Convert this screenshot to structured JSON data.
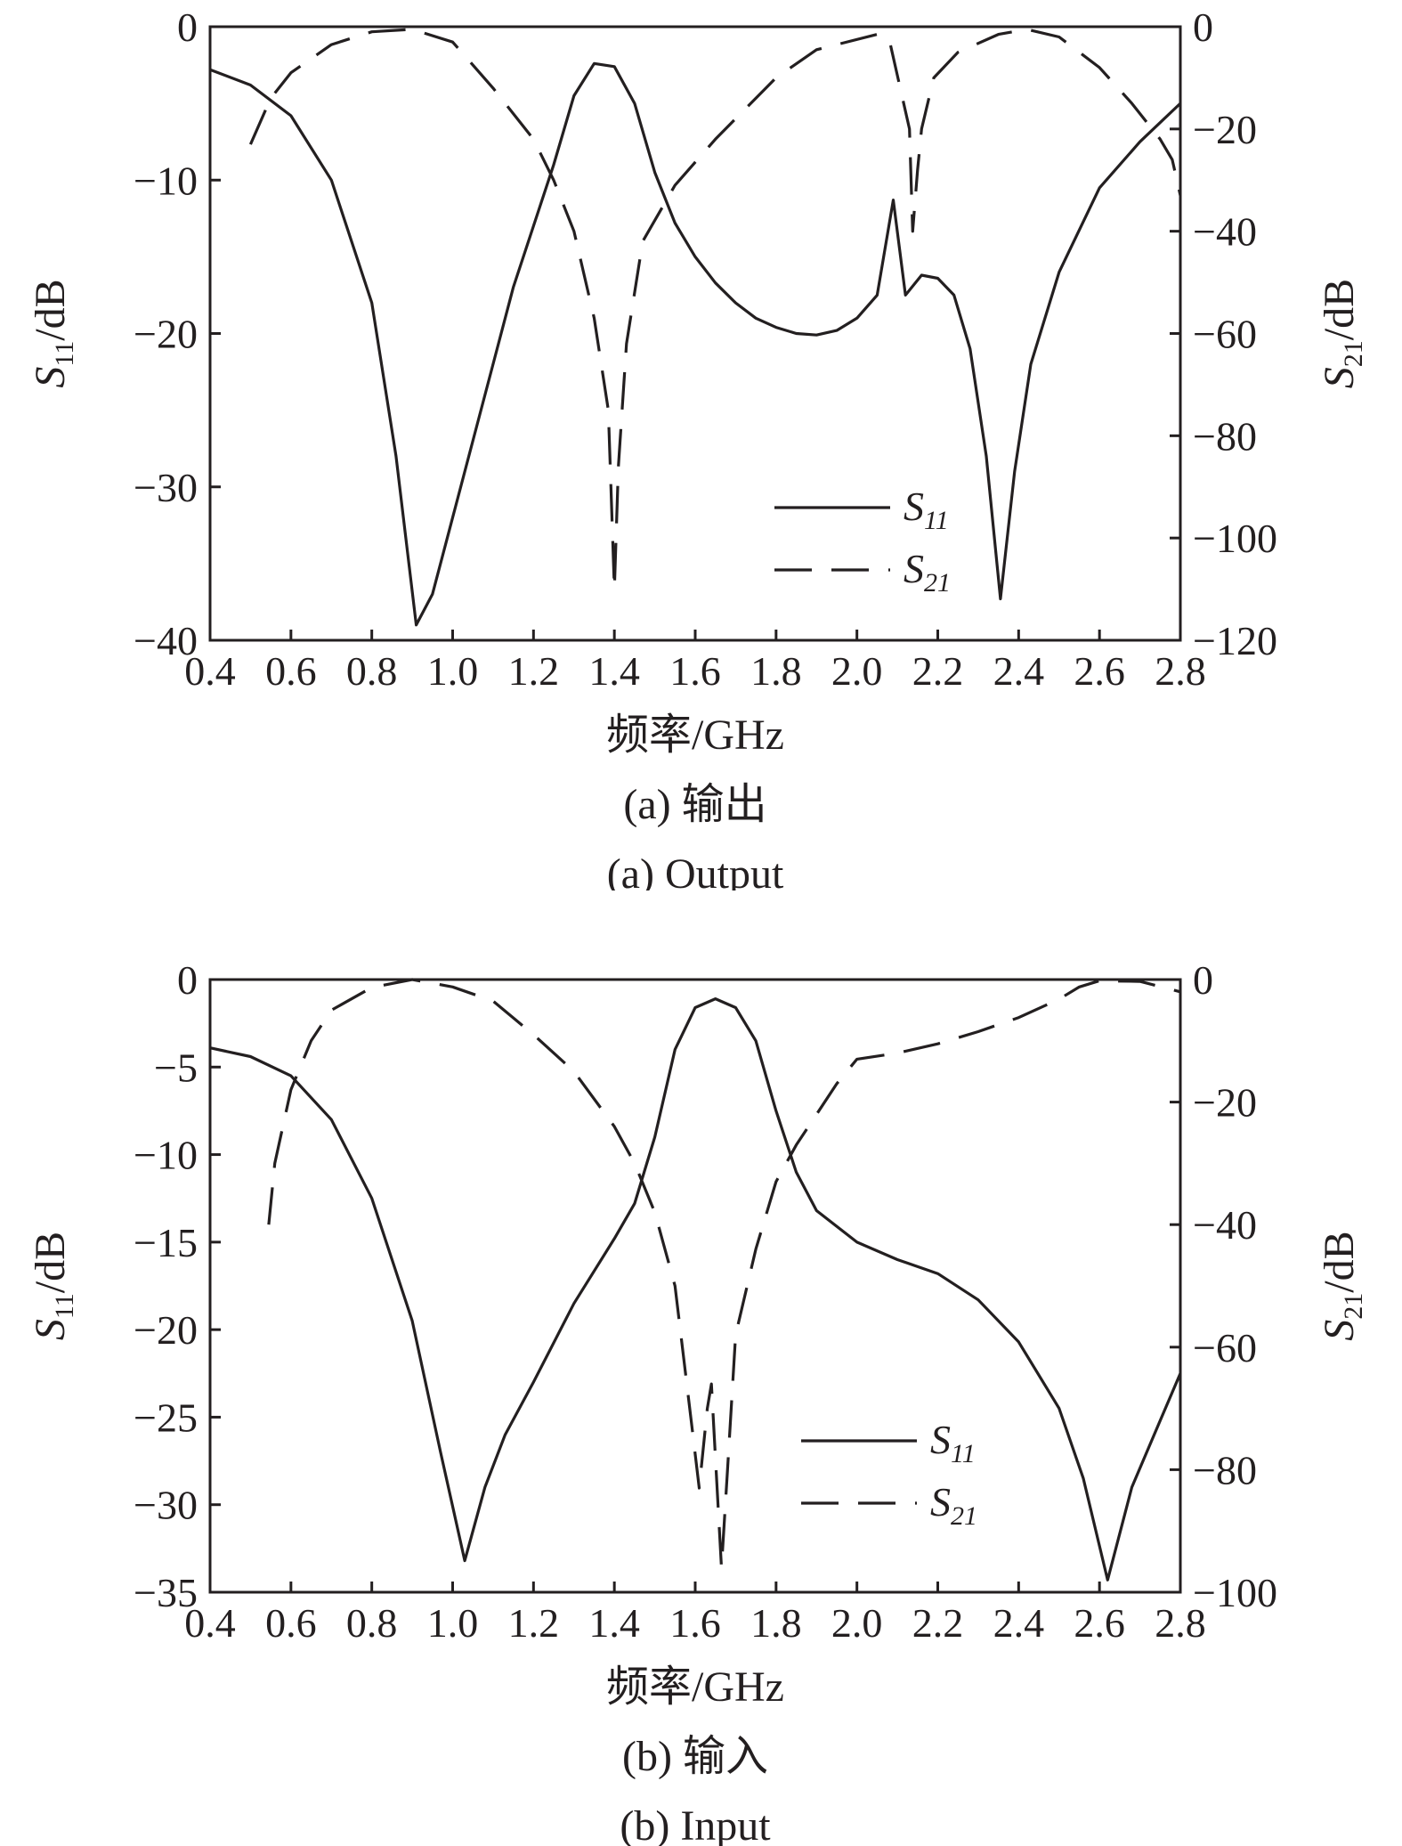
{
  "chart_data": [
    {
      "type": "line",
      "xlabel": "频率/GHz",
      "ylabel_left": "S11/dB",
      "ylabel_left_main": "S",
      "ylabel_left_sub": "11",
      "ylabel_left_rest": "/dB",
      "ylabel_right": "S21/dB",
      "ylabel_right_main": "S",
      "ylabel_right_sub": "21",
      "ylabel_right_rest": "/dB",
      "caption_cn": "(a) 输出",
      "caption_en": "(a) Output",
      "xlim": [
        0.4,
        2.8
      ],
      "ylim_left": [
        -40,
        0
      ],
      "ylim_right": [
        -120,
        0
      ],
      "x_ticks": [
        "0.4",
        "0.6",
        "0.8",
        "1.0",
        "1.2",
        "1.4",
        "1.6",
        "1.8",
        "2.0",
        "2.2",
        "2.4",
        "2.6",
        "2.8"
      ],
      "y_left_ticks": [
        "0",
        "-10",
        "-20",
        "-30",
        "-40"
      ],
      "y_right_ticks": [
        "0",
        "-20",
        "-40",
        "-60",
        "-80",
        "-100",
        "-120"
      ],
      "grid": false,
      "legend_position": "lower-right",
      "series": [
        {
          "name": "S11",
          "name_main": "S",
          "name_sub": "11",
          "axis": "left",
          "style": "solid",
          "points": [
            [
              0.4,
              -2.8
            ],
            [
              0.5,
              -3.8
            ],
            [
              0.6,
              -5.8
            ],
            [
              0.7,
              -10
            ],
            [
              0.8,
              -18
            ],
            [
              0.86,
              -28
            ],
            [
              0.91,
              -39
            ],
            [
              0.95,
              -37
            ],
            [
              1.0,
              -32
            ],
            [
              1.05,
              -27
            ],
            [
              1.1,
              -22
            ],
            [
              1.15,
              -17
            ],
            [
              1.2,
              -13
            ],
            [
              1.25,
              -9
            ],
            [
              1.3,
              -4.5
            ],
            [
              1.35,
              -2.4
            ],
            [
              1.4,
              -2.6
            ],
            [
              1.45,
              -5
            ],
            [
              1.5,
              -9.5
            ],
            [
              1.55,
              -12.8
            ],
            [
              1.6,
              -15
            ],
            [
              1.65,
              -16.7
            ],
            [
              1.7,
              -18
            ],
            [
              1.75,
              -19
            ],
            [
              1.8,
              -19.6
            ],
            [
              1.85,
              -20
            ],
            [
              1.9,
              -20.1
            ],
            [
              1.95,
              -19.8
            ],
            [
              2.0,
              -19
            ],
            [
              2.05,
              -17.5
            ],
            [
              2.09,
              -11.3
            ],
            [
              2.12,
              -17.5
            ],
            [
              2.16,
              -16.2
            ],
            [
              2.2,
              -16.4
            ],
            [
              2.24,
              -17.5
            ],
            [
              2.28,
              -21
            ],
            [
              2.32,
              -28
            ],
            [
              2.355,
              -37.3
            ],
            [
              2.39,
              -29
            ],
            [
              2.43,
              -22
            ],
            [
              2.5,
              -16
            ],
            [
              2.6,
              -10.5
            ],
            [
              2.7,
              -7.5
            ],
            [
              2.8,
              -5
            ]
          ]
        },
        {
          "name": "S21",
          "name_main": "S",
          "name_sub": "21",
          "axis": "right",
          "style": "dashed",
          "points": [
            [
              0.5,
              -23
            ],
            [
              0.55,
              -14
            ],
            [
              0.6,
              -9
            ],
            [
              0.7,
              -3.5
            ],
            [
              0.8,
              -1
            ],
            [
              0.9,
              -0.5
            ],
            [
              1.0,
              -3
            ],
            [
              1.1,
              -12
            ],
            [
              1.2,
              -22
            ],
            [
              1.25,
              -30
            ],
            [
              1.3,
              -40
            ],
            [
              1.35,
              -57
            ],
            [
              1.385,
              -75
            ],
            [
              1.4,
              -110
            ],
            [
              1.41,
              -86
            ],
            [
              1.43,
              -62
            ],
            [
              1.47,
              -42
            ],
            [
              1.55,
              -31
            ],
            [
              1.65,
              -22
            ],
            [
              1.8,
              -10
            ],
            [
              1.9,
              -4.5
            ],
            [
              2.05,
              -1.5
            ],
            [
              2.08,
              -2.5
            ],
            [
              2.11,
              -13
            ],
            [
              2.13,
              -20
            ],
            [
              2.138,
              -40
            ],
            [
              2.15,
              -28
            ],
            [
              2.16,
              -20
            ],
            [
              2.19,
              -10
            ],
            [
              2.25,
              -5
            ],
            [
              2.35,
              -1.5
            ],
            [
              2.42,
              -0.5
            ],
            [
              2.5,
              -2
            ],
            [
              2.6,
              -8
            ],
            [
              2.68,
              -15
            ],
            [
              2.75,
              -22
            ],
            [
              2.78,
              -26
            ],
            [
              2.8,
              -33
            ]
          ]
        }
      ]
    },
    {
      "type": "line",
      "xlabel": "频率/GHz",
      "ylabel_left": "S11/dB",
      "ylabel_left_main": "S",
      "ylabel_left_sub": "11",
      "ylabel_left_rest": "/dB",
      "ylabel_right": "S21/dB",
      "ylabel_right_main": "S",
      "ylabel_right_sub": "21",
      "ylabel_right_rest": "/dB",
      "caption_cn": "(b) 输入",
      "caption_en": "(b) Input",
      "xlim": [
        0.4,
        2.8
      ],
      "ylim_left": [
        -35,
        0
      ],
      "ylim_right": [
        -100,
        0
      ],
      "x_ticks": [
        "0.4",
        "0.6",
        "0.8",
        "1.0",
        "1.2",
        "1.4",
        "1.6",
        "1.8",
        "2.0",
        "2.2",
        "2.4",
        "2.6",
        "2.8"
      ],
      "y_left_ticks": [
        "0",
        "-5",
        "-10",
        "-15",
        "-20",
        "-25",
        "-30",
        "-35"
      ],
      "y_right_ticks": [
        "0",
        "-20",
        "-40",
        "-60",
        "-80",
        "-100"
      ],
      "grid": false,
      "legend_position": "lower-right",
      "series": [
        {
          "name": "S11",
          "name_main": "S",
          "name_sub": "11",
          "axis": "left",
          "style": "solid",
          "points": [
            [
              0.4,
              -3.9
            ],
            [
              0.5,
              -4.4
            ],
            [
              0.6,
              -5.5
            ],
            [
              0.7,
              -8
            ],
            [
              0.8,
              -12.5
            ],
            [
              0.9,
              -19.5
            ],
            [
              0.97,
              -27
            ],
            [
              1.03,
              -33.2
            ],
            [
              1.08,
              -29
            ],
            [
              1.13,
              -26
            ],
            [
              1.2,
              -23
            ],
            [
              1.3,
              -18.5
            ],
            [
              1.4,
              -14.8
            ],
            [
              1.45,
              -12.8
            ],
            [
              1.5,
              -9
            ],
            [
              1.55,
              -4
            ],
            [
              1.6,
              -1.6
            ],
            [
              1.65,
              -1.1
            ],
            [
              1.7,
              -1.6
            ],
            [
              1.75,
              -3.5
            ],
            [
              1.8,
              -7.5
            ],
            [
              1.85,
              -11
            ],
            [
              1.9,
              -13.2
            ],
            [
              2.0,
              -15
            ],
            [
              2.1,
              -16
            ],
            [
              2.2,
              -16.8
            ],
            [
              2.3,
              -18.3
            ],
            [
              2.4,
              -20.7
            ],
            [
              2.5,
              -24.5
            ],
            [
              2.56,
              -28.5
            ],
            [
              2.62,
              -34.3
            ],
            [
              2.68,
              -29
            ],
            [
              2.75,
              -25.2
            ],
            [
              2.8,
              -22.5
            ]
          ]
        },
        {
          "name": "S21",
          "name_main": "S",
          "name_sub": "21",
          "axis": "right",
          "style": "dashed",
          "points": [
            [
              0.545,
              -40
            ],
            [
              0.56,
              -30
            ],
            [
              0.6,
              -18
            ],
            [
              0.65,
              -10
            ],
            [
              0.7,
              -5
            ],
            [
              0.8,
              -1.3
            ],
            [
              0.9,
              0
            ],
            [
              1.0,
              -1.2
            ],
            [
              1.1,
              -3.5
            ],
            [
              1.2,
              -9
            ],
            [
              1.3,
              -15
            ],
            [
              1.4,
              -24
            ],
            [
              1.45,
              -30
            ],
            [
              1.5,
              -38
            ],
            [
              1.55,
              -50
            ],
            [
              1.59,
              -72
            ],
            [
              1.61,
              -83
            ],
            [
              1.63,
              -70
            ],
            [
              1.64,
              -66
            ],
            [
              1.65,
              -78
            ],
            [
              1.665,
              -96
            ],
            [
              1.68,
              -80
            ],
            [
              1.7,
              -58
            ],
            [
              1.75,
              -44
            ],
            [
              1.8,
              -33
            ],
            [
              1.85,
              -27
            ],
            [
              1.9,
              -22
            ],
            [
              1.95,
              -17
            ],
            [
              2.0,
              -13
            ],
            [
              2.1,
              -12
            ],
            [
              2.2,
              -10.5
            ],
            [
              2.3,
              -8.5
            ],
            [
              2.4,
              -6.2
            ],
            [
              2.5,
              -3.2
            ],
            [
              2.55,
              -1.2
            ],
            [
              2.6,
              -0.2
            ],
            [
              2.7,
              -0.3
            ],
            [
              2.8,
              -2
            ]
          ]
        }
      ]
    }
  ]
}
